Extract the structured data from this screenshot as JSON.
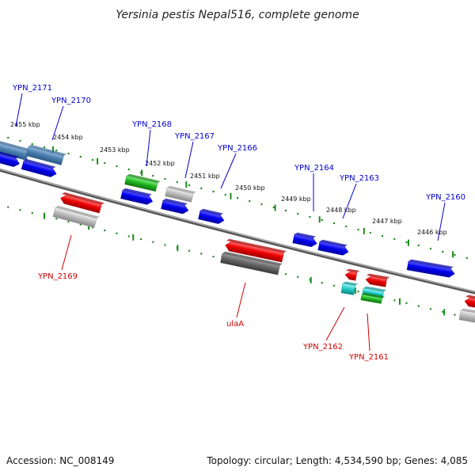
{
  "title": "Yersinia pestis Nepal516, complete genome",
  "footer": {
    "accession": "Accession: NC_008149",
    "summary": "Topology: circular; Length: 4,534,590 bp; Genes: 4,085"
  },
  "colors": {
    "forward_label": "#0000cc",
    "reverse_label": "#cc0000",
    "backbone": "#8a8a8a",
    "tick": "#1a8a1a"
  },
  "scale_labels": [
    "2455 kbp",
    "2454 kbp",
    "2453 kbp",
    "2452 kbp",
    "2451 kbp",
    "2450 kbp",
    "2449 kbp",
    "2448 kbp",
    "2447 kbp",
    "2446 kbp"
  ],
  "forward_gene_labels": [
    "YPN_2171",
    "YPN_2170",
    "YPN_2168",
    "YPN_2167",
    "YPN_2166",
    "YPN_2164",
    "YPN_2163",
    "YPN_2160"
  ],
  "reverse_gene_labels": [
    "YPN_2169",
    "ulaA",
    "YPN_2162",
    "YPN_2161"
  ]
}
